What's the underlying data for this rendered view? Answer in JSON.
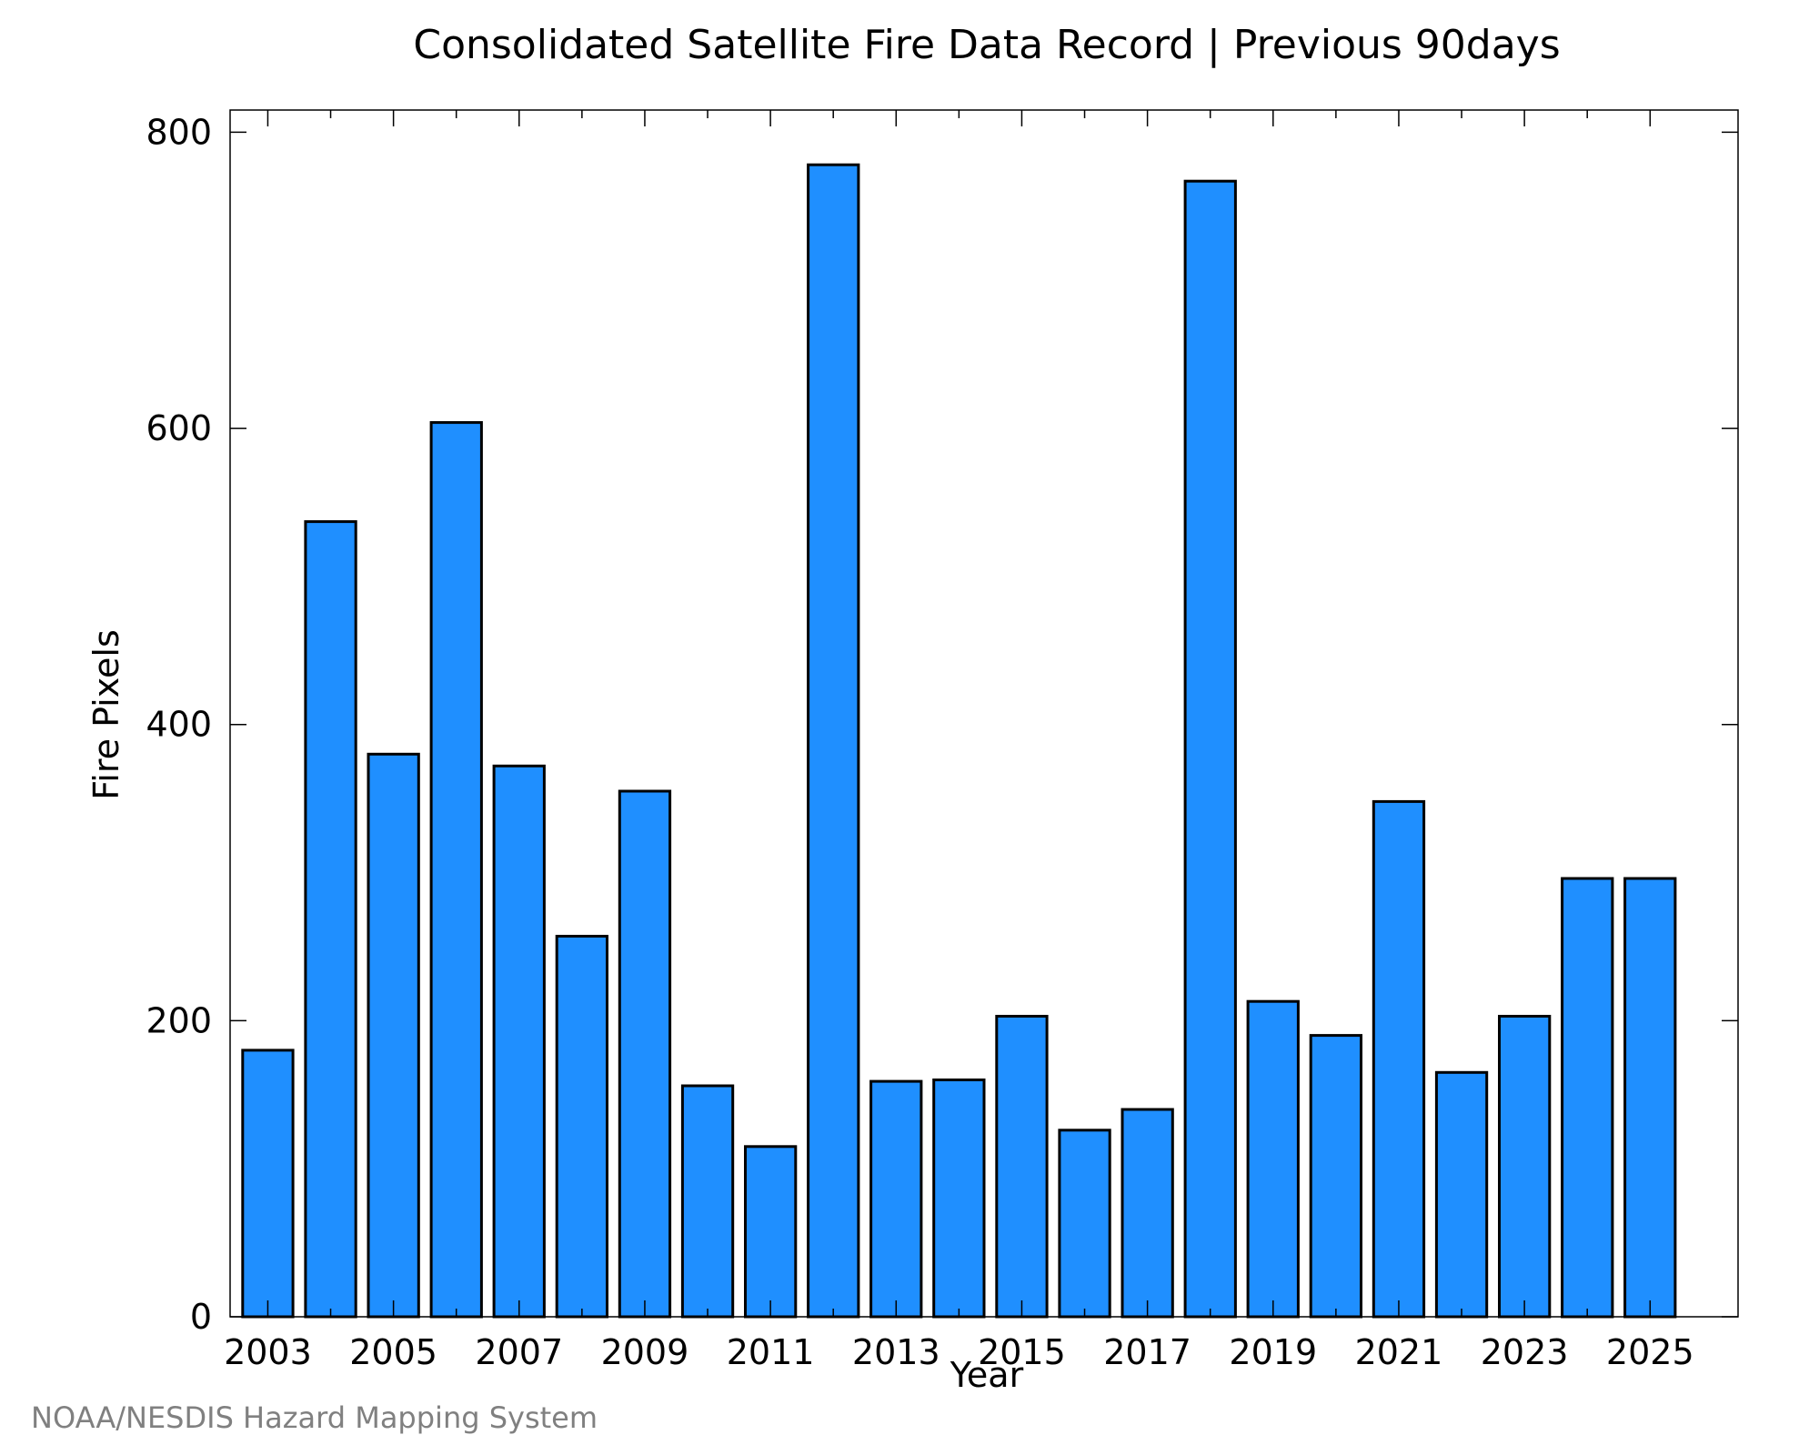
{
  "colors": {
    "bar_fill": "#1f8fff",
    "bar_stroke": "#000000",
    "axis": "#000000",
    "source_text": "#808080",
    "background": "#ffffff"
  },
  "source": "NOAA/NESDIS Hazard Mapping System",
  "chart_data": {
    "type": "bar",
    "title": "Consolidated Satellite Fire Data Record | Previous 90days",
    "xlabel": "Year",
    "ylabel": "Fire Pixels",
    "ylim": [
      0,
      815
    ],
    "xlim": [
      2002.4,
      2026.4
    ],
    "grid": false,
    "legend": "none",
    "y_ticks": [
      0,
      200,
      400,
      600,
      800
    ],
    "x_ticks": [
      2003,
      2005,
      2007,
      2009,
      2011,
      2013,
      2015,
      2017,
      2019,
      2021,
      2023,
      2025
    ],
    "x_minor_ticks": [
      2004,
      2006,
      2008,
      2010,
      2012,
      2014,
      2016,
      2018,
      2020,
      2022,
      2024
    ],
    "categories": [
      "2003",
      "2004",
      "2005",
      "2006",
      "2007",
      "2008",
      "2009",
      "2010",
      "2011",
      "2012",
      "2013",
      "2014",
      "2015",
      "2016",
      "2017",
      "2018",
      "2019",
      "2020",
      "2021",
      "2022",
      "2023",
      "2024",
      "2025"
    ],
    "values": [
      180,
      537,
      380,
      604,
      372,
      257,
      355,
      156,
      115,
      778,
      159,
      160,
      203,
      126,
      140,
      767,
      213,
      190,
      348,
      165,
      203,
      296,
      296
    ]
  }
}
